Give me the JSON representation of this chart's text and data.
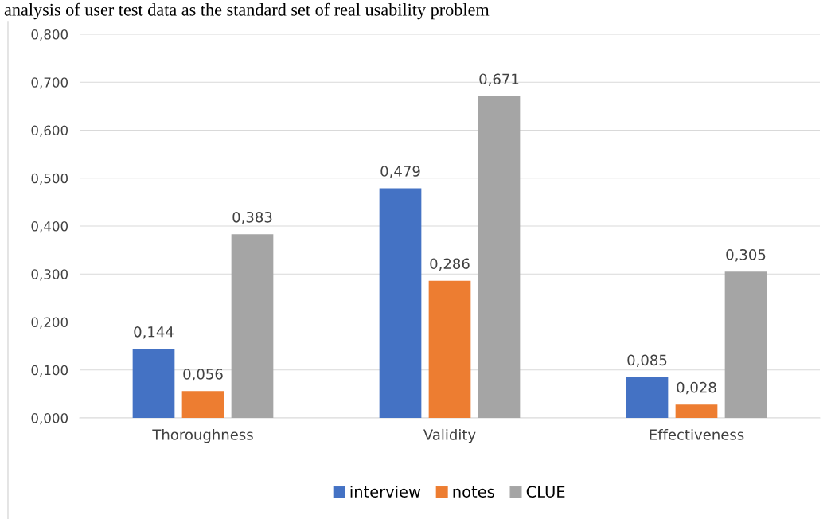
{
  "chart_data": {
    "type": "bar",
    "annotations": [
      "analysis of user test data as the standard set of real usability problem"
    ],
    "categories": [
      "Thoroughness",
      "Validity",
      "Effectiveness"
    ],
    "series": [
      {
        "name": "interview",
        "color": "#4472c4",
        "values": [
          0.144,
          0.479,
          0.085
        ],
        "value_labels": [
          "0,144",
          "0,479",
          "0,085"
        ]
      },
      {
        "name": "notes",
        "color": "#ed7d31",
        "values": [
          0.056,
          0.286,
          0.028
        ],
        "value_labels": [
          "0,056",
          "0,286",
          "0,028"
        ]
      },
      {
        "name": "CLUE",
        "color": "#a5a5a5",
        "values": [
          0.383,
          0.671,
          0.305
        ],
        "value_labels": [
          "0,383",
          "0,671",
          "0,305"
        ]
      }
    ],
    "ylim": [
      0,
      0.8
    ],
    "yticks": [
      {
        "value": 0,
        "label": "0,000"
      },
      {
        "value": 0.1,
        "label": "0,100"
      },
      {
        "value": 0.2,
        "label": "0,200"
      },
      {
        "value": 0.3,
        "label": "0,300"
      },
      {
        "value": 0.4,
        "label": "0,400"
      },
      {
        "value": 0.5,
        "label": "0,500"
      },
      {
        "value": 0.6,
        "label": "0,600"
      },
      {
        "value": 0.7,
        "label": "0,700"
      },
      {
        "value": 0.8,
        "label": "0,800"
      }
    ],
    "grid": "y",
    "legend": "bottom"
  }
}
